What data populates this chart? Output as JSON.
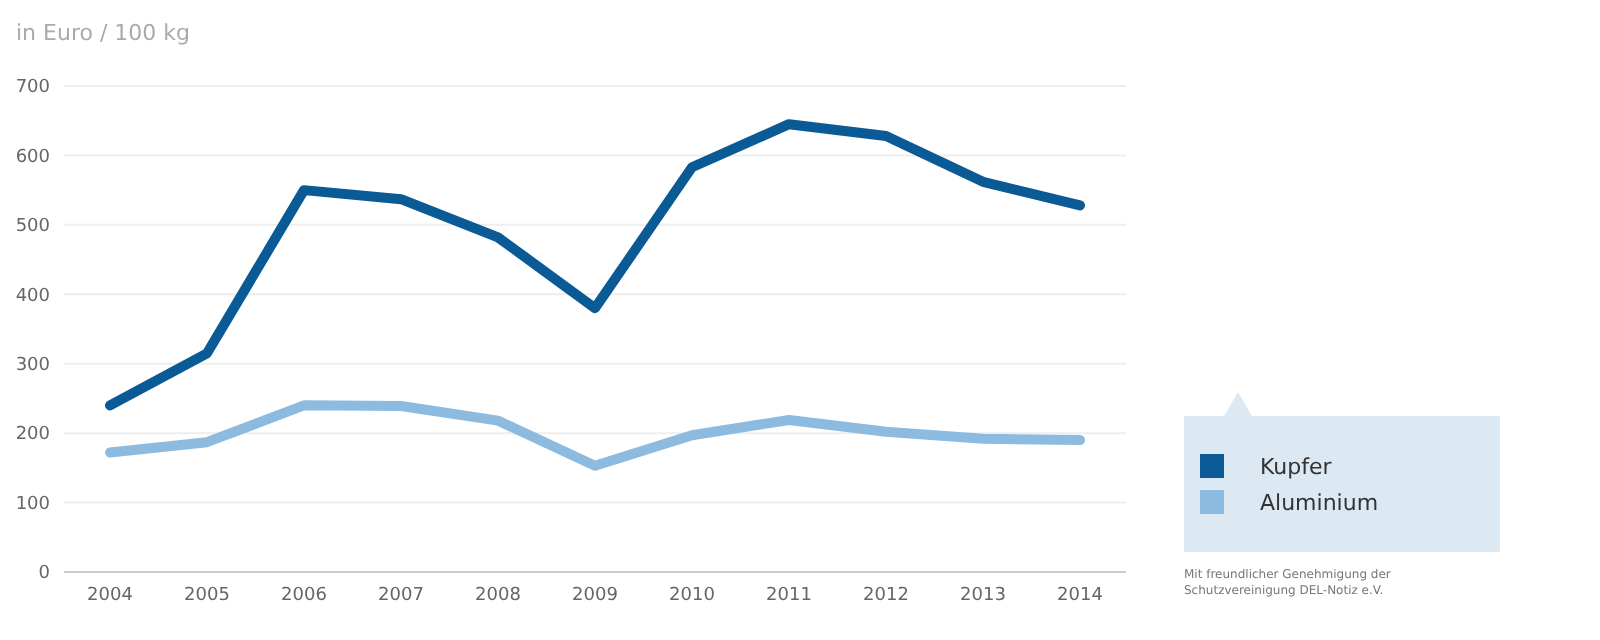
{
  "chart_data": {
    "type": "line",
    "ylabel": "in Euro / 100 kg",
    "categories": [
      "2004",
      "2005",
      "2006",
      "2007",
      "2008",
      "2009",
      "2010",
      "2011",
      "2012",
      "2013",
      "2014"
    ],
    "series": [
      {
        "name": "Kupfer",
        "color": "#0a5a96",
        "values": [
          240,
          315,
          550,
          537,
          482,
          380,
          583,
          645,
          628,
          562,
          528
        ]
      },
      {
        "name": "Aluminium",
        "color": "#8dbbe0",
        "values": [
          172,
          187,
          240,
          239,
          218,
          153,
          197,
          219,
          202,
          192,
          190
        ]
      }
    ],
    "ylim": [
      0,
      700
    ],
    "yticks": [
      0,
      100,
      200,
      300,
      400,
      500,
      600,
      700
    ],
    "grid": "y",
    "legend": "right",
    "marker": "none",
    "line_style": "solid",
    "annotations": [
      "Mit freundlicher Genehmigung der Schutzvereinigung DEL-Notiz e.V."
    ]
  }
}
